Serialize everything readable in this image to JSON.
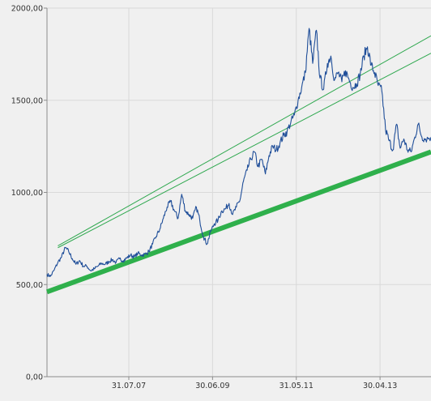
{
  "chart_data": {
    "type": "line",
    "title": "",
    "xlabel": "",
    "ylabel": "",
    "ylim": [
      0,
      2000
    ],
    "xlim": [
      "2005-09-15",
      "2014-06-30"
    ],
    "y_ticks": [
      0,
      500,
      1000,
      1500,
      2000
    ],
    "y_tick_labels": [
      "0,00",
      "500,00",
      "1000,00",
      "1500,00",
      "2000,00"
    ],
    "x_ticks": [
      "2007-07-31",
      "2009-06-30",
      "2011-05-31",
      "2013-04-30"
    ],
    "x_tick_labels": [
      "31.07.07",
      "30.06.09",
      "31.05.11",
      "30.04.13"
    ],
    "grid": true,
    "colors": {
      "background": "#f0f0f0",
      "grid": "#d9d9d9",
      "axis": "#8c8c8c",
      "price_line": "#1f4e99",
      "channel_lines": "#2fa84f",
      "support_line": "#2fb04c"
    },
    "series": [
      {
        "values": [
          [
            "2005-09-15",
            555
          ],
          [
            "2005-10-15",
            545
          ],
          [
            "2005-11-15",
            580
          ],
          [
            "2005-12-15",
            620
          ],
          [
            "2006-01-15",
            650
          ],
          [
            "2006-02-15",
            700
          ],
          [
            "2006-03-15",
            680
          ],
          [
            "2006-04-15",
            640
          ],
          [
            "2006-05-15",
            610
          ],
          [
            "2006-06-15",
            630
          ],
          [
            "2006-07-15",
            600
          ],
          [
            "2006-08-15",
            600
          ],
          [
            "2006-09-15",
            575
          ],
          [
            "2006-10-15",
            585
          ],
          [
            "2006-11-15",
            600
          ],
          [
            "2006-12-15",
            615
          ],
          [
            "2007-01-15",
            610
          ],
          [
            "2007-02-15",
            625
          ],
          [
            "2007-03-15",
            635
          ],
          [
            "2007-04-15",
            620
          ],
          [
            "2007-05-15",
            640
          ],
          [
            "2007-06-15",
            630
          ],
          [
            "2007-07-15",
            645
          ],
          [
            "2007-08-15",
            660
          ],
          [
            "2007-09-15",
            650
          ],
          [
            "2007-10-15",
            670
          ],
          [
            "2007-11-15",
            660
          ],
          [
            "2007-12-15",
            665
          ],
          [
            "2008-01-15",
            680
          ],
          [
            "2008-02-15",
            720
          ],
          [
            "2008-03-15",
            760
          ],
          [
            "2008-04-15",
            800
          ],
          [
            "2008-05-15",
            860
          ],
          [
            "2008-06-15",
            920
          ],
          [
            "2008-07-15",
            950
          ],
          [
            "2008-08-15",
            900
          ],
          [
            "2008-09-15",
            860
          ],
          [
            "2008-10-15",
            990
          ],
          [
            "2008-11-15",
            900
          ],
          [
            "2008-12-15",
            880
          ],
          [
            "2009-01-15",
            860
          ],
          [
            "2009-02-15",
            920
          ],
          [
            "2009-03-15",
            850
          ],
          [
            "2009-04-15",
            760
          ],
          [
            "2009-05-15",
            720
          ],
          [
            "2009-06-15",
            790
          ],
          [
            "2009-07-15",
            830
          ],
          [
            "2009-08-15",
            850
          ],
          [
            "2009-09-15",
            900
          ],
          [
            "2009-10-15",
            910
          ],
          [
            "2009-11-15",
            940
          ],
          [
            "2009-12-15",
            880
          ],
          [
            "2010-01-15",
            920
          ],
          [
            "2010-02-15",
            960
          ],
          [
            "2010-03-15",
            1060
          ],
          [
            "2010-04-15",
            1120
          ],
          [
            "2010-05-15",
            1180
          ],
          [
            "2010-06-15",
            1220
          ],
          [
            "2010-07-15",
            1140
          ],
          [
            "2010-08-15",
            1180
          ],
          [
            "2010-09-15",
            1100
          ],
          [
            "2010-10-15",
            1200
          ],
          [
            "2010-11-15",
            1250
          ],
          [
            "2010-12-15",
            1230
          ],
          [
            "2011-01-15",
            1270
          ],
          [
            "2011-02-15",
            1310
          ],
          [
            "2011-03-15",
            1330
          ],
          [
            "2011-04-15",
            1380
          ],
          [
            "2011-05-15",
            1420
          ],
          [
            "2011-06-15",
            1500
          ],
          [
            "2011-07-15",
            1570
          ],
          [
            "2011-08-15",
            1650
          ],
          [
            "2011-09-15",
            1890
          ],
          [
            "2011-10-15",
            1700
          ],
          [
            "2011-11-15",
            1880
          ],
          [
            "2011-12-15",
            1620
          ],
          [
            "2012-01-15",
            1560
          ],
          [
            "2012-02-15",
            1700
          ],
          [
            "2012-03-15",
            1740
          ],
          [
            "2012-04-15",
            1610
          ],
          [
            "2012-05-15",
            1650
          ],
          [
            "2012-06-15",
            1600
          ],
          [
            "2012-07-15",
            1660
          ],
          [
            "2012-08-15",
            1610
          ],
          [
            "2012-09-15",
            1570
          ],
          [
            "2012-10-15",
            1590
          ],
          [
            "2012-11-15",
            1640
          ],
          [
            "2012-12-15",
            1740
          ],
          [
            "2013-01-15",
            1790
          ],
          [
            "2013-02-15",
            1690
          ],
          [
            "2013-03-15",
            1650
          ],
          [
            "2013-04-15",
            1580
          ],
          [
            "2013-05-15",
            1550
          ],
          [
            "2013-06-15",
            1340
          ],
          [
            "2013-07-15",
            1280
          ],
          [
            "2013-08-15",
            1230
          ],
          [
            "2013-09-15",
            1370
          ],
          [
            "2013-10-15",
            1240
          ],
          [
            "2013-11-15",
            1290
          ],
          [
            "2013-12-15",
            1230
          ],
          [
            "2014-01-15",
            1220
          ],
          [
            "2014-02-15",
            1300
          ],
          [
            "2014-03-15",
            1370
          ],
          [
            "2014-04-15",
            1300
          ],
          [
            "2014-05-15",
            1290
          ],
          [
            "2014-06-30",
            1300
          ]
        ]
      }
    ],
    "trend_lines": [
      {
        "start": [
          "2005-12-15",
          710
        ],
        "end": [
          "2014-06-30",
          1850
        ]
      },
      {
        "start": [
          "2005-12-15",
          700
        ],
        "end": [
          "2014-06-30",
          1755
        ]
      },
      {
        "start": [
          "2005-09-15",
          460
        ],
        "end": [
          "2014-06-30",
          1220
        ]
      }
    ]
  }
}
